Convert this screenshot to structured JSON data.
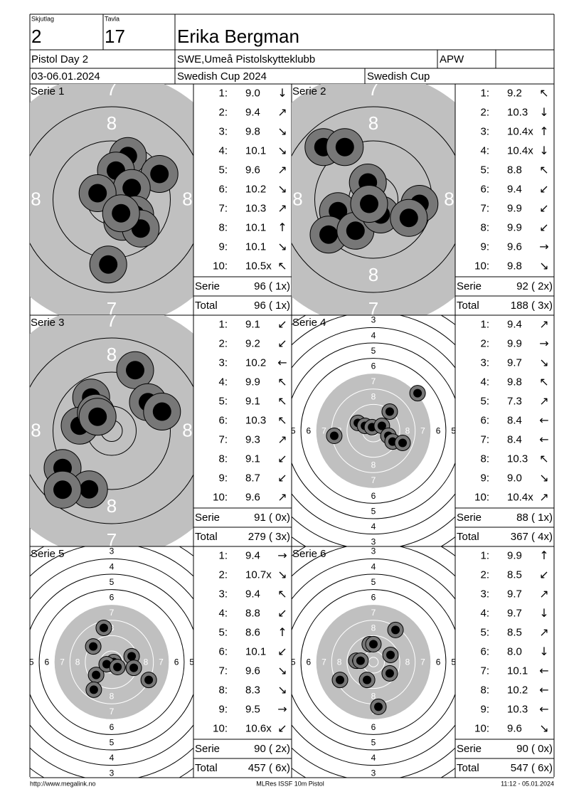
{
  "header": {
    "skjutlag_label": "Skjutlag",
    "skjutlag": "2",
    "tavla_label": "Tavla",
    "tavla": "17",
    "name": "Erika Bergman",
    "event": "Pistol Day 2",
    "club": "SWE,Umeå Pistolskytteklubb",
    "class": "APW",
    "date": "03-06.01.2024",
    "competition": "Swedish Cup 2024",
    "cup": "Swedish Cup"
  },
  "serie_label": "Serie",
  "total_label": "Total",
  "ring_labels": {
    "zoom": [
      7,
      8
    ],
    "full": [
      3,
      4,
      5,
      6,
      7,
      8
    ]
  },
  "series": [
    {
      "title": "Serie 1",
      "view": "zoom",
      "serie": "96 ( 1x)",
      "total": "96 ( 1x)",
      "shots": [
        {
          "no": "1:",
          "score": "9.0",
          "dir": "↓"
        },
        {
          "no": "2:",
          "score": "9.4",
          "dir": "↗"
        },
        {
          "no": "3:",
          "score": "9.8",
          "dir": "↘"
        },
        {
          "no": "4:",
          "score": "10.1",
          "dir": "↘"
        },
        {
          "no": "5:",
          "score": "9.6",
          "dir": "↗"
        },
        {
          "no": "6:",
          "score": "10.2",
          "dir": "↘"
        },
        {
          "no": "7:",
          "score": "10.3",
          "dir": "↗"
        },
        {
          "no": "8:",
          "score": "10.1",
          "dir": "↑"
        },
        {
          "no": "9:",
          "score": "10.1",
          "dir": "↘"
        },
        {
          "no": "10:",
          "score": "10.5x",
          "dir": "↖"
        }
      ],
      "hits": [
        [
          3.8,
          -10.2
        ],
        [
          1.0,
          -6.8
        ],
        [
          11.2,
          -6.0
        ],
        [
          4.7,
          -2.7
        ],
        [
          -3.3,
          -1.5
        ],
        [
          5.5,
          3.5
        ],
        [
          2.5,
          5.2
        ],
        [
          6.8,
          6.8
        ],
        [
          -0.8,
          15.2
        ],
        [
          2.2,
          3.2
        ]
      ]
    },
    {
      "title": "Serie 2",
      "view": "zoom",
      "serie": "92 ( 2x)",
      "total": "188 ( 3x)",
      "shots": [
        {
          "no": "1:",
          "score": "9.2",
          "dir": "↖"
        },
        {
          "no": "2:",
          "score": "10.3",
          "dir": "↓"
        },
        {
          "no": "3:",
          "score": "10.4x",
          "dir": "↑"
        },
        {
          "no": "4:",
          "score": "10.4x",
          "dir": "↓"
        },
        {
          "no": "5:",
          "score": "8.8",
          "dir": "↖"
        },
        {
          "no": "6:",
          "score": "9.4",
          "dir": "↙"
        },
        {
          "no": "7:",
          "score": "9.9",
          "dir": "↙"
        },
        {
          "no": "8:",
          "score": "9.9",
          "dir": "↙"
        },
        {
          "no": "9:",
          "score": "9.6",
          "dir": "→"
        },
        {
          "no": "10:",
          "score": "9.8",
          "dir": "↘"
        }
      ],
      "hits": [
        [
          -11.7,
          -12.3
        ],
        [
          -6.7,
          -12.3
        ],
        [
          -1.3,
          -4.0
        ],
        [
          -8.3,
          2.7
        ],
        [
          -10.5,
          8.2
        ],
        [
          -4.2,
          7.3
        ],
        [
          1.7,
          3.5
        ],
        [
          10.8,
          1.0
        ],
        [
          8.3,
          4.3
        ],
        [
          -1.0,
          1.0
        ]
      ]
    },
    {
      "title": "Serie 3",
      "view": "zoom",
      "serie": "91 ( 0x)",
      "total": "279 ( 3x)",
      "shots": [
        {
          "no": "1:",
          "score": "9.1",
          "dir": "↙"
        },
        {
          "no": "2:",
          "score": "9.2",
          "dir": "↙"
        },
        {
          "no": "3:",
          "score": "10.2",
          "dir": "←"
        },
        {
          "no": "4:",
          "score": "9.9",
          "dir": "↖"
        },
        {
          "no": "5:",
          "score": "9.1",
          "dir": "↖"
        },
        {
          "no": "6:",
          "score": "10.3",
          "dir": "↖"
        },
        {
          "no": "7:",
          "score": "9.3",
          "dir": "↗"
        },
        {
          "no": "8:",
          "score": "9.1",
          "dir": "↙"
        },
        {
          "no": "9:",
          "score": "8.7",
          "dir": "↙"
        },
        {
          "no": "10:",
          "score": "9.6",
          "dir": "↗"
        }
      ],
      "hits": [
        [
          5.5,
          -14.2
        ],
        [
          -4.8,
          -7.8
        ],
        [
          8.5,
          -6.7
        ],
        [
          11.8,
          -4.5
        ],
        [
          -7.5,
          -1.2
        ],
        [
          -3.7,
          -4.2
        ],
        [
          -11.5,
          8.7
        ],
        [
          -5.3,
          13.7
        ],
        [
          -11.5,
          13.8
        ],
        [
          -3.3,
          -3.3
        ]
      ]
    },
    {
      "title": "Serie 4",
      "view": "full",
      "serie": "88 ( 1x)",
      "total": "367 ( 4x)",
      "shots": [
        {
          "no": "1:",
          "score": "9.4",
          "dir": "↗"
        },
        {
          "no": "2:",
          "score": "9.9",
          "dir": "→"
        },
        {
          "no": "3:",
          "score": "9.7",
          "dir": "↘"
        },
        {
          "no": "4:",
          "score": "9.8",
          "dir": "↖"
        },
        {
          "no": "5:",
          "score": "7.3",
          "dir": "↗"
        },
        {
          "no": "6:",
          "score": "8.4",
          "dir": "←"
        },
        {
          "no": "7:",
          "score": "8.4",
          "dir": "←"
        },
        {
          "no": "8:",
          "score": "10.3",
          "dir": "↖"
        },
        {
          "no": "9:",
          "score": "9.0",
          "dir": "↘"
        },
        {
          "no": "10:",
          "score": "10.4x",
          "dir": "↗"
        }
      ],
      "hits": [
        [
          23.0,
          -19.6
        ],
        [
          8.5,
          -10.0
        ],
        [
          -8.1,
          -4.1
        ],
        [
          -4.4,
          -2.6
        ],
        [
          -0.7,
          -1.9
        ],
        [
          4.4,
          -2.6
        ],
        [
          -20.4,
          2.6
        ],
        [
          7.8,
          2.6
        ],
        [
          10.0,
          5.6
        ],
        [
          15.2,
          6.3
        ]
      ]
    },
    {
      "title": "Serie 5",
      "view": "full",
      "serie": "90 ( 2x)",
      "total": "457 ( 6x)",
      "shots": [
        {
          "no": "1:",
          "score": "9.4",
          "dir": "→"
        },
        {
          "no": "2:",
          "score": "10.7x",
          "dir": "↘"
        },
        {
          "no": "3:",
          "score": "9.4",
          "dir": "↖"
        },
        {
          "no": "4:",
          "score": "8.8",
          "dir": "↙"
        },
        {
          "no": "5:",
          "score": "8.6",
          "dir": "↑"
        },
        {
          "no": "6:",
          "score": "10.1",
          "dir": "↙"
        },
        {
          "no": "7:",
          "score": "9.6",
          "dir": "↘"
        },
        {
          "no": "8:",
          "score": "8.3",
          "dir": "↘"
        },
        {
          "no": "9:",
          "score": "9.5",
          "dir": "→"
        },
        {
          "no": "10:",
          "score": "10.6x",
          "dir": "↙"
        }
      ],
      "hits": [
        [
          -4.1,
          -17.8
        ],
        [
          -9.6,
          -8.1
        ],
        [
          10.4,
          -3.0
        ],
        [
          -8.1,
          6.7
        ],
        [
          -9.3,
          14.4
        ],
        [
          11.5,
          3.0
        ],
        [
          19.3,
          9.3
        ],
        [
          1.1,
          0.0
        ],
        [
          -2.6,
          1.1
        ],
        [
          3.0,
          2.6
        ]
      ]
    },
    {
      "title": "Serie 6",
      "view": "full",
      "serie": "90 ( 0x)",
      "total": "547 ( 6x)",
      "shots": [
        {
          "no": "1:",
          "score": "9.9",
          "dir": "↑"
        },
        {
          "no": "2:",
          "score": "8.5",
          "dir": "↙"
        },
        {
          "no": "3:",
          "score": "9.7",
          "dir": "↗"
        },
        {
          "no": "4:",
          "score": "9.7",
          "dir": "↓"
        },
        {
          "no": "5:",
          "score": "8.5",
          "dir": "↗"
        },
        {
          "no": "6:",
          "score": "8.0",
          "dir": "↓"
        },
        {
          "no": "7:",
          "score": "10.1",
          "dir": "←"
        },
        {
          "no": "8:",
          "score": "10.2",
          "dir": "←"
        },
        {
          "no": "9:",
          "score": "10.3",
          "dir": "←"
        },
        {
          "no": "10:",
          "score": "9.6",
          "dir": "↘"
        }
      ],
      "hits": [
        [
          11.5,
          -16.7
        ],
        [
          -1.9,
          -9.3
        ],
        [
          -8.9,
          -0.7
        ],
        [
          8.9,
          -3.7
        ],
        [
          8.5,
          5.9
        ],
        [
          -3.3,
          9.3
        ],
        [
          -17.4,
          9.3
        ],
        [
          2.6,
          23.3
        ],
        [
          -6.7,
          -0.7
        ],
        [
          0.0,
          -9.3
        ]
      ]
    }
  ],
  "footer": {
    "url": "http://www.megalink.no",
    "program": "MLRes ISSF 10m Pistol",
    "timestamp": "11:12 - 05.01.2024"
  }
}
